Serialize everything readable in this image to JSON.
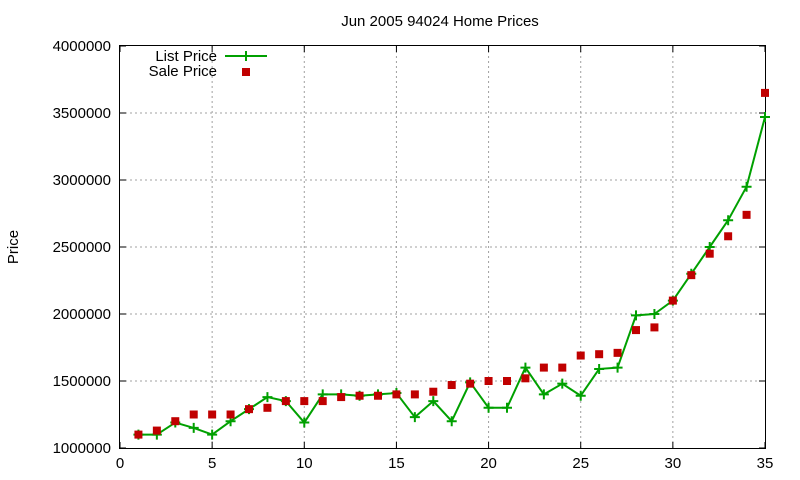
{
  "chart_data": {
    "type": "line",
    "title": "Jun 2005 94024 Home Prices",
    "xlabel": "",
    "ylabel": "Price",
    "xlim": [
      0,
      35
    ],
    "ylim": [
      1000000,
      4000000
    ],
    "xticks": [
      "0",
      "5",
      "10",
      "15",
      "20",
      "25",
      "30",
      "35"
    ],
    "yticks": [
      "1000000",
      "1500000",
      "2000000",
      "2500000",
      "3000000",
      "3500000",
      "4000000"
    ],
    "grid": true,
    "legend_position": "top-left",
    "series": [
      {
        "name": "List Price",
        "style": "line-cross",
        "color": "#00a000",
        "x": [
          1,
          2,
          3,
          4,
          5,
          6,
          7,
          8,
          9,
          10,
          11,
          12,
          13,
          14,
          15,
          16,
          17,
          18,
          19,
          20,
          21,
          22,
          23,
          24,
          25,
          26,
          27,
          28,
          29,
          30,
          31,
          32,
          33,
          34,
          35
        ],
        "y": [
          1100000,
          1100000,
          1190000,
          1150000,
          1100000,
          1200000,
          1290000,
          1380000,
          1350000,
          1190000,
          1400000,
          1400000,
          1390000,
          1400000,
          1410000,
          1230000,
          1350000,
          1200000,
          1490000,
          1300000,
          1300000,
          1600000,
          1400000,
          1480000,
          1390000,
          1590000,
          1600000,
          1990000,
          2000000,
          2100000,
          2300000,
          2500000,
          2700000,
          2950000,
          3470000
        ]
      },
      {
        "name": "Sale Price",
        "style": "square",
        "color": "#c00000",
        "x": [
          1,
          2,
          3,
          4,
          5,
          6,
          7,
          8,
          9,
          10,
          11,
          12,
          13,
          14,
          15,
          16,
          17,
          18,
          19,
          20,
          21,
          22,
          23,
          24,
          25,
          26,
          27,
          28,
          29,
          30,
          31,
          32,
          33,
          34,
          35
        ],
        "y": [
          1100000,
          1130000,
          1200000,
          1250000,
          1250000,
          1250000,
          1290000,
          1300000,
          1350000,
          1350000,
          1350000,
          1380000,
          1390000,
          1390000,
          1400000,
          1400000,
          1420000,
          1470000,
          1480000,
          1500000,
          1500000,
          1520000,
          1600000,
          1600000,
          1690000,
          1700000,
          1710000,
          1880000,
          1900000,
          2100000,
          2290000,
          2450000,
          2580000,
          2740000,
          3650000
        ]
      }
    ]
  }
}
